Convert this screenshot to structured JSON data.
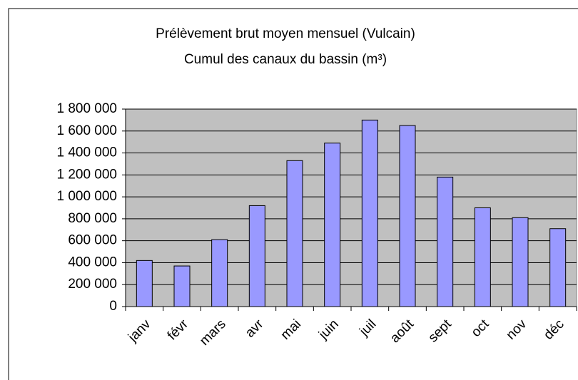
{
  "chart_data": {
    "type": "bar",
    "title": "Prélèvement brut moyen mensuel (Vulcain)",
    "subtitle": "Cumul des canaux du bassin (m³)",
    "categories": [
      "janv",
      "févr",
      "mars",
      "avr",
      "mai",
      "juin",
      "juil",
      "août",
      "sept",
      "oct",
      "nov",
      "déc"
    ],
    "values": [
      420000,
      370000,
      610000,
      920000,
      1330000,
      1490000,
      1700000,
      1650000,
      1180000,
      900000,
      810000,
      710000
    ],
    "color": "#9999ff",
    "ylim": [
      0,
      1800000
    ],
    "yticks": [
      0,
      {
        "value": 200000,
        "label": "200 000"
      },
      {
        "value": 400000,
        "label": "400 000"
      },
      {
        "value": 600000,
        "label": "600 000"
      },
      {
        "value": 800000,
        "label": "800 000"
      },
      {
        "value": 1000000,
        "label": "1 000 000"
      },
      {
        "value": 1200000,
        "label": "1 200 000"
      },
      {
        "value": 1400000,
        "label": "1 400 000"
      },
      {
        "value": 1600000,
        "label": "1 600 000"
      },
      {
        "value": 1800000,
        "label": "1 800 000"
      }
    ],
    "grid": true
  }
}
